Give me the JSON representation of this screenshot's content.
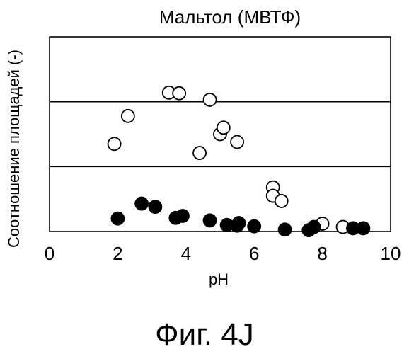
{
  "chart_data": {
    "type": "scatter",
    "title": "Мальтол (МВТФ)",
    "xlabel": "pH",
    "ylabel": "Соотношение площадей (-)",
    "xlim": [
      0,
      10
    ],
    "ylim": [
      0,
      3
    ],
    "xticks": [
      "0",
      "2",
      "4",
      "6",
      "8",
      "10"
    ],
    "grid": "horizontal lines at y=1 and y=2",
    "series": [
      {
        "marker": "open-circle",
        "color": "#000000",
        "points": [
          {
            "x": 1.9,
            "y": 1.35
          },
          {
            "x": 2.3,
            "y": 1.78
          },
          {
            "x": 3.5,
            "y": 2.14
          },
          {
            "x": 3.8,
            "y": 2.13
          },
          {
            "x": 4.4,
            "y": 1.21
          },
          {
            "x": 4.7,
            "y": 2.03
          },
          {
            "x": 5.0,
            "y": 1.5
          },
          {
            "x": 5.1,
            "y": 1.6
          },
          {
            "x": 5.5,
            "y": 1.38
          },
          {
            "x": 6.55,
            "y": 0.68
          },
          {
            "x": 6.55,
            "y": 0.55
          },
          {
            "x": 6.8,
            "y": 0.47
          },
          {
            "x": 8.0,
            "y": 0.12
          },
          {
            "x": 8.6,
            "y": 0.07
          }
        ]
      },
      {
        "marker": "filled-circle",
        "color": "#000000",
        "points": [
          {
            "x": 2.0,
            "y": 0.2
          },
          {
            "x": 2.7,
            "y": 0.43
          },
          {
            "x": 3.1,
            "y": 0.38
          },
          {
            "x": 3.7,
            "y": 0.21
          },
          {
            "x": 3.9,
            "y": 0.24
          },
          {
            "x": 4.7,
            "y": 0.17
          },
          {
            "x": 5.2,
            "y": 0.1
          },
          {
            "x": 5.5,
            "y": 0.09
          },
          {
            "x": 5.55,
            "y": 0.13
          },
          {
            "x": 6.0,
            "y": 0.08
          },
          {
            "x": 6.9,
            "y": 0.03
          },
          {
            "x": 7.6,
            "y": 0.02
          },
          {
            "x": 7.75,
            "y": 0.07
          },
          {
            "x": 8.9,
            "y": 0.05
          },
          {
            "x": 9.2,
            "y": 0.05
          }
        ]
      }
    ]
  },
  "figure_label": "Фиг. 4J"
}
